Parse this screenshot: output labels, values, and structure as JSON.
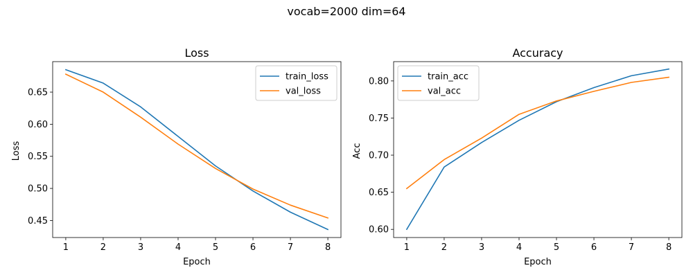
{
  "figure": {
    "suptitle": "vocab=2000 dim=64"
  },
  "colors": {
    "train": "#1f77b4",
    "val": "#ff7f0e"
  },
  "chart_data": [
    {
      "type": "line",
      "title": "Loss",
      "xlabel": "Epoch",
      "ylabel": "Loss",
      "x": [
        1,
        2,
        3,
        4,
        5,
        6,
        7,
        8
      ],
      "xticks": [
        "1",
        "2",
        "3",
        "4",
        "5",
        "6",
        "7",
        "8"
      ],
      "xlim": [
        0.65,
        8.35
      ],
      "yticks": [
        "0.45",
        "0.50",
        "0.55",
        "0.60",
        "0.65"
      ],
      "ylim": [
        0.4235,
        0.6975
      ],
      "legend_position": "top-right",
      "series": [
        {
          "name": "train_loss",
          "color": "#1f77b4",
          "values": [
            0.685,
            0.664,
            0.627,
            0.581,
            0.535,
            0.496,
            0.463,
            0.436
          ]
        },
        {
          "name": "val_loss",
          "color": "#ff7f0e",
          "values": [
            0.678,
            0.65,
            0.611,
            0.569,
            0.531,
            0.499,
            0.474,
            0.454
          ]
        }
      ]
    },
    {
      "type": "line",
      "title": "Accuracy",
      "xlabel": "Epoch",
      "ylabel": "Acc",
      "x": [
        1,
        2,
        3,
        4,
        5,
        6,
        7,
        8
      ],
      "xticks": [
        "1",
        "2",
        "3",
        "4",
        "5",
        "6",
        "7",
        "8"
      ],
      "xlim": [
        0.65,
        8.35
      ],
      "yticks": [
        "0.60",
        "0.65",
        "0.70",
        "0.75",
        "0.80"
      ],
      "ylim": [
        0.589,
        0.826
      ],
      "legend_position": "top-left",
      "series": [
        {
          "name": "train_acc",
          "color": "#1f77b4",
          "values": [
            0.6,
            0.684,
            0.717,
            0.747,
            0.772,
            0.791,
            0.807,
            0.816
          ]
        },
        {
          "name": "val_acc",
          "color": "#ff7f0e",
          "values": [
            0.655,
            0.694,
            0.723,
            0.755,
            0.773,
            0.786,
            0.798,
            0.805
          ]
        }
      ]
    }
  ]
}
